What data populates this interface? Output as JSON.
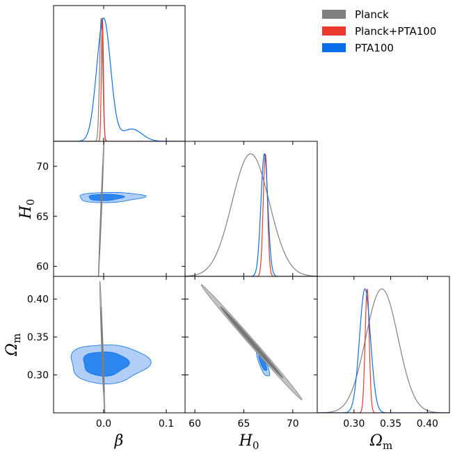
{
  "chart_data": {
    "type": "triangle-corner",
    "parameters": [
      "beta",
      "H0",
      "Omega_m"
    ],
    "axis_labels": {
      "beta": {
        "main": "β",
        "sub": ""
      },
      "H0": {
        "main": "H",
        "sub": "0"
      },
      "Omega_m": {
        "main": "Ω",
        "sub": "m"
      }
    },
    "ranges": {
      "beta": [
        -0.08,
        0.13
      ],
      "H0": [
        59.0,
        72.5
      ],
      "Omega_m": [
        0.25,
        0.43
      ]
    },
    "ticks": {
      "beta": {
        "values": [
          0.0,
          0.1
        ],
        "labels": [
          "0.0",
          "0.1"
        ]
      },
      "H0_x": {
        "values": [
          60,
          65,
          70
        ],
        "labels": [
          "60",
          "65",
          "70"
        ]
      },
      "H0_y": {
        "values": [
          60,
          65,
          70
        ],
        "labels": [
          "60",
          "65",
          "70"
        ]
      },
      "Omega_m_x": {
        "values": [
          0.3,
          0.35,
          0.4
        ],
        "labels": [
          "0.30",
          "0.35",
          "0.40"
        ]
      },
      "Omega_m_y": {
        "values": [
          0.3,
          0.35,
          0.4
        ],
        "labels": [
          "0.30",
          "0.35",
          "0.40"
        ]
      }
    },
    "legend": {
      "position": "top-right",
      "entries": [
        {
          "name": "Planck",
          "color": "#808080"
        },
        {
          "name": "Planck+PTA100",
          "color": "#e8392b"
        },
        {
          "name": "PTA100",
          "color": "#0a6fe8"
        }
      ]
    },
    "series": [
      {
        "name": "Planck",
        "color": "#808080",
        "fill_inner": "#777777",
        "fill_outer": "#bdbdbd",
        "marginals": {
          "beta": {
            "mean": -0.004,
            "sigma": 0.0025
          },
          "H0": {
            "mean": 65.7,
            "sigma": 1.9
          },
          "Omega_m": {
            "mean": 0.338,
            "sigma": 0.022
          }
        },
        "contours": {
          "H0_beta": {
            "mean": [
              -0.004,
              65.6
            ],
            "sigma": [
              0.0019,
              2.9
            ],
            "rho": 0.98
          },
          "Om_beta": {
            "mean": [
              -0.002,
              0.333
            ],
            "sigma": [
              0.0017,
              0.037
            ],
            "rho": -0.95
          },
          "Om_H0": {
            "mean": [
              65.8,
              0.343
            ],
            "sigma": [
              2.1,
              0.031
            ],
            "rho": -0.997
          }
        }
      },
      {
        "name": "Planck+PTA100",
        "color": "#e8392b",
        "marginals": {
          "beta": {
            "mean": -0.002,
            "sigma": 0.0016
          },
          "H0": {
            "mean": 67.2,
            "sigma": 0.22
          },
          "Omega_m": {
            "mean": 0.318,
            "sigma": 0.0028
          }
        }
      },
      {
        "name": "PTA100",
        "color": "#0a6fe8",
        "fill_inner": "#2d87ee",
        "fill_outer": "#a7c9f5",
        "marginals": {
          "beta": {
            "mean": 0.0,
            "sigma": 0.011,
            "bump_mean": 0.045,
            "bump_sigma": 0.016,
            "bump_weight": 0.1
          },
          "H0": {
            "mean": 67.1,
            "sigma": 0.35
          },
          "Omega_m": {
            "mean": 0.315,
            "sigma": 0.0075
          }
        },
        "contours": {
          "H0_beta": {
            "mean": [
              0.0,
              66.9
            ],
            "sigma": [
              0.016,
              0.21
            ],
            "rho": 0.12,
            "outer_stretch_beta": 1.6
          },
          "Om_beta": {
            "mean": [
              0.0,
              0.315
            ],
            "sigma": [
              0.022,
              0.0105
            ],
            "rho": 0.0,
            "outer_stretch_beta": 1.3
          },
          "Om_H0": {
            "mean": [
              66.9,
              0.318
            ],
            "sigma": [
              0.28,
              0.0085
            ],
            "rho": -0.8
          }
        }
      }
    ]
  }
}
